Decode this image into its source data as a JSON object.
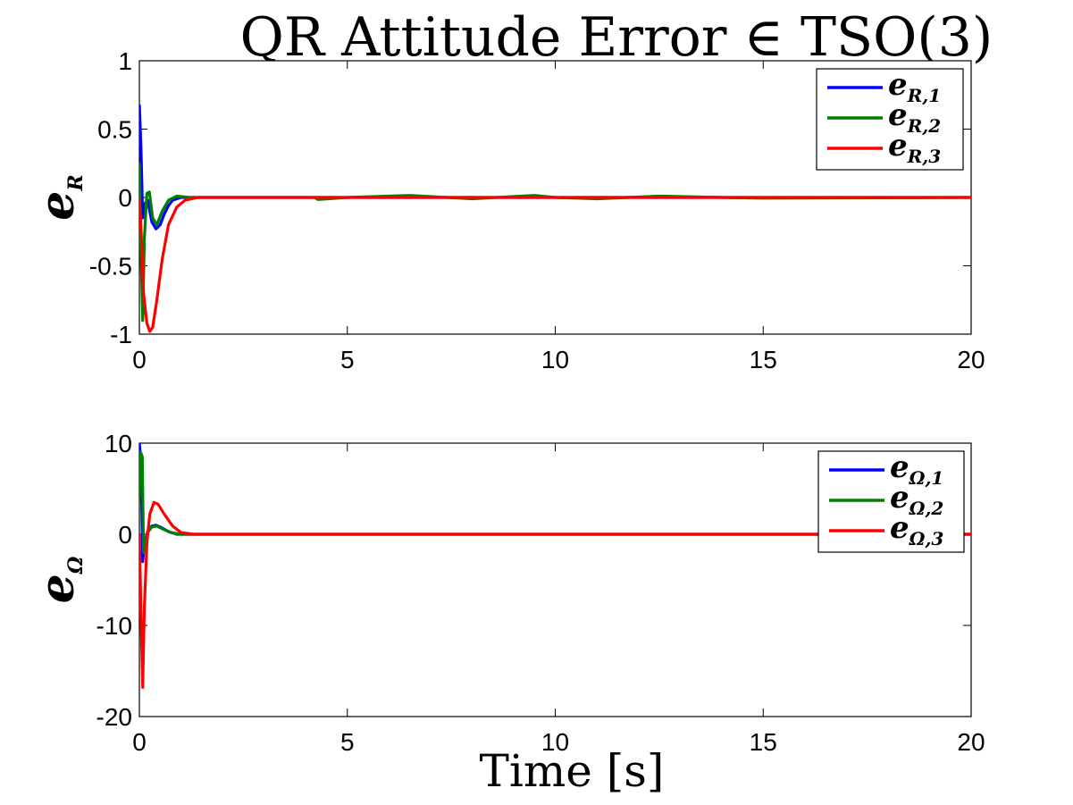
{
  "figure": {
    "title": "QR Attitude Error ∈ TSO(3)",
    "xlabel": "Time [s]"
  },
  "colors": {
    "blue": "#0000ff",
    "green": "#008000",
    "red": "#ff0000"
  },
  "chart_data": [
    {
      "type": "line",
      "ylabel": {
        "main": "e",
        "sub": "R"
      },
      "xlim": [
        0,
        20
      ],
      "ylim": [
        -1,
        1
      ],
      "xticks": [
        "0",
        "5",
        "10",
        "15",
        "20"
      ],
      "yticks": [
        "-1",
        "-0.5",
        "0",
        "0.5",
        "1"
      ],
      "xtick_values": [
        0,
        5,
        10,
        15,
        20
      ],
      "ytick_values": [
        -1,
        -0.5,
        0,
        0.5,
        1
      ],
      "legend_position": "top-right",
      "series": [
        {
          "name": "e_{R,1}",
          "legend_main": "e",
          "legend_sub": "R,1",
          "color": "#0000ff",
          "points": [
            [
              0,
              0.68
            ],
            [
              0.04,
              0.35
            ],
            [
              0.08,
              -0.15
            ],
            [
              0.12,
              -0.05
            ],
            [
              0.2,
              -0.02
            ],
            [
              0.3,
              -0.18
            ],
            [
              0.4,
              -0.23
            ],
            [
              0.5,
              -0.2
            ],
            [
              0.6,
              -0.12
            ],
            [
              0.7,
              -0.06
            ],
            [
              0.8,
              -0.02
            ],
            [
              1.0,
              0.0
            ],
            [
              2.0,
              0.0
            ],
            [
              20,
              0.0
            ]
          ]
        },
        {
          "name": "e_{R,2}",
          "legend_main": "e",
          "legend_sub": "R,2",
          "color": "#008000",
          "points": [
            [
              0,
              0.25
            ],
            [
              0.04,
              -0.4
            ],
            [
              0.08,
              -0.9
            ],
            [
              0.12,
              -0.3
            ],
            [
              0.18,
              0.03
            ],
            [
              0.24,
              0.04
            ],
            [
              0.32,
              -0.15
            ],
            [
              0.42,
              -0.2
            ],
            [
              0.55,
              -0.1
            ],
            [
              0.7,
              -0.02
            ],
            [
              0.9,
              0.01
            ],
            [
              1.2,
              0.0
            ],
            [
              4.2,
              0.0
            ],
            [
              4.3,
              -0.015
            ],
            [
              5,
              0.0
            ],
            [
              6.5,
              0.015
            ],
            [
              8,
              -0.01
            ],
            [
              9.5,
              0.015
            ],
            [
              10,
              0.0
            ],
            [
              11,
              -0.01
            ],
            [
              12.5,
              0.01
            ],
            [
              14,
              0.0
            ],
            [
              15,
              -0.005
            ],
            [
              20,
              0.0
            ]
          ]
        },
        {
          "name": "e_{R,3}",
          "legend_main": "e",
          "legend_sub": "R,3",
          "color": "#ff0000",
          "points": [
            [
              0,
              0.0
            ],
            [
              0.05,
              -0.3
            ],
            [
              0.1,
              -0.7
            ],
            [
              0.18,
              -0.92
            ],
            [
              0.25,
              -0.98
            ],
            [
              0.32,
              -0.95
            ],
            [
              0.42,
              -0.75
            ],
            [
              0.55,
              -0.45
            ],
            [
              0.7,
              -0.2
            ],
            [
              0.9,
              -0.07
            ],
            [
              1.1,
              -0.02
            ],
            [
              1.4,
              0.0
            ],
            [
              20,
              0.0
            ]
          ]
        }
      ]
    },
    {
      "type": "line",
      "ylabel": {
        "main": "e",
        "sub": "Ω"
      },
      "xlim": [
        0,
        20
      ],
      "ylim": [
        -20,
        10
      ],
      "xticks": [
        "0",
        "5",
        "10",
        "15",
        "20"
      ],
      "yticks": [
        "-20",
        "-10",
        "0",
        "10"
      ],
      "xtick_values": [
        0,
        5,
        10,
        15,
        20
      ],
      "ytick_values": [
        -20,
        -10,
        0,
        10
      ],
      "legend_position": "top-right",
      "series": [
        {
          "name": "e_{Ω,1}",
          "legend_main": "e",
          "legend_sub": "Ω,1",
          "color": "#0000ff",
          "points": [
            [
              0,
              10
            ],
            [
              0.04,
              8
            ],
            [
              0.08,
              -3
            ],
            [
              0.12,
              -1
            ],
            [
              0.2,
              0.3
            ],
            [
              0.3,
              0.9
            ],
            [
              0.4,
              1.0
            ],
            [
              0.5,
              0.8
            ],
            [
              0.7,
              0.3
            ],
            [
              0.9,
              0.0
            ],
            [
              20,
              0.0
            ]
          ]
        },
        {
          "name": "e_{Ω,2}",
          "legend_main": "e",
          "legend_sub": "Ω,2",
          "color": "#008000",
          "points": [
            [
              0,
              4
            ],
            [
              0.03,
              9
            ],
            [
              0.07,
              8.5
            ],
            [
              0.1,
              -2
            ],
            [
              0.13,
              -1
            ],
            [
              0.2,
              0.2
            ],
            [
              0.3,
              0.8
            ],
            [
              0.42,
              0.9
            ],
            [
              0.55,
              0.6
            ],
            [
              0.75,
              0.2
            ],
            [
              1.0,
              0.0
            ],
            [
              20,
              0.0
            ]
          ]
        },
        {
          "name": "e_{Ω,3}",
          "legend_main": "e",
          "legend_sub": "Ω,3",
          "color": "#ff0000",
          "points": [
            [
              0,
              0
            ],
            [
              0.04,
              -9
            ],
            [
              0.08,
              -16.8
            ],
            [
              0.12,
              -8
            ],
            [
              0.18,
              -1
            ],
            [
              0.25,
              2.2
            ],
            [
              0.35,
              3.5
            ],
            [
              0.45,
              3.3
            ],
            [
              0.6,
              2.2
            ],
            [
              0.8,
              0.9
            ],
            [
              1.0,
              0.2
            ],
            [
              1.3,
              0.0
            ],
            [
              20,
              0.0
            ]
          ]
        }
      ]
    }
  ]
}
